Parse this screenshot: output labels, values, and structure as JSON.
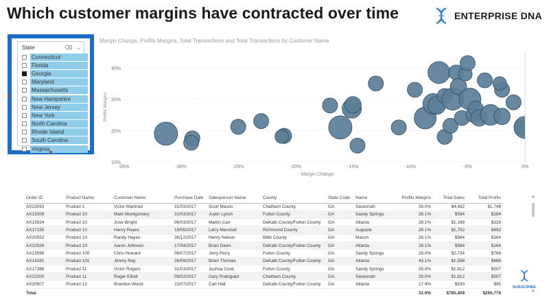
{
  "page": {
    "title": "Which customer margins have contracted over time",
    "brand": "ENTERPRISE DNA",
    "subscribe": "SUBSCRIBE"
  },
  "slicer": {
    "header": "State",
    "items": [
      {
        "label": "Connecticut",
        "checked": false
      },
      {
        "label": "Florida",
        "checked": false
      },
      {
        "label": "Georgia",
        "checked": true
      },
      {
        "label": "Maryland",
        "checked": false
      },
      {
        "label": "Massachusetts",
        "checked": false
      },
      {
        "label": "New Hampshire",
        "checked": false
      },
      {
        "label": "New Jersey",
        "checked": false
      },
      {
        "label": "New York",
        "checked": false
      },
      {
        "label": "North Carolina",
        "checked": false
      },
      {
        "label": "Rhode Island",
        "checked": false
      },
      {
        "label": "South Carolina",
        "checked": false
      },
      {
        "label": "Virginia",
        "checked": false
      }
    ]
  },
  "chart_data": {
    "type": "scatter",
    "title": "Margin Change, Profits Margins, Total Transactions and Total Transactions by Customer Name",
    "xlabel": "Margin Change",
    "ylabel": "Profits Margins",
    "xlim": [
      -0.35,
      0.0
    ],
    "ylim": [
      0.1,
      0.45
    ],
    "xticks": [
      "-35%",
      "-30%",
      "-25%",
      "-20%",
      "-15%",
      "-10%",
      "-5%",
      "0%"
    ],
    "yticks": [
      "10%",
      "20%",
      "30%",
      "40%"
    ],
    "color": "#5b7e99",
    "points": [
      {
        "x": -0.313,
        "y": 0.19,
        "r": 17
      },
      {
        "x": -0.29,
        "y": 0.175,
        "r": 11
      },
      {
        "x": -0.291,
        "y": 0.161,
        "r": 11
      },
      {
        "x": -0.25,
        "y": 0.212,
        "r": 11
      },
      {
        "x": -0.23,
        "y": 0.23,
        "r": 11
      },
      {
        "x": -0.21,
        "y": 0.183,
        "r": 11
      },
      {
        "x": -0.212,
        "y": 0.181,
        "r": 10
      },
      {
        "x": -0.17,
        "y": 0.28,
        "r": 11
      },
      {
        "x": -0.161,
        "y": 0.21,
        "r": 17
      },
      {
        "x": -0.151,
        "y": 0.27,
        "r": 14
      },
      {
        "x": -0.15,
        "y": 0.282,
        "r": 12
      },
      {
        "x": -0.146,
        "y": 0.152,
        "r": 11
      },
      {
        "x": -0.13,
        "y": 0.35,
        "r": 11
      },
      {
        "x": -0.11,
        "y": 0.21,
        "r": 11
      },
      {
        "x": -0.096,
        "y": 0.33,
        "r": 11
      },
      {
        "x": -0.087,
        "y": 0.24,
        "r": 16
      },
      {
        "x": -0.08,
        "y": 0.285,
        "r": 15
      },
      {
        "x": -0.077,
        "y": 0.28,
        "r": 13
      },
      {
        "x": -0.075,
        "y": 0.385,
        "r": 16
      },
      {
        "x": -0.07,
        "y": 0.31,
        "r": 11
      },
      {
        "x": -0.07,
        "y": 0.18,
        "r": 11
      },
      {
        "x": -0.065,
        "y": 0.215,
        "r": 11
      },
      {
        "x": -0.063,
        "y": 0.3,
        "r": 16
      },
      {
        "x": -0.06,
        "y": 0.385,
        "r": 11
      },
      {
        "x": -0.058,
        "y": 0.34,
        "r": 12
      },
      {
        "x": -0.055,
        "y": 0.24,
        "r": 11
      },
      {
        "x": -0.052,
        "y": 0.38,
        "r": 10
      },
      {
        "x": -0.05,
        "y": 0.415,
        "r": 11
      },
      {
        "x": -0.048,
        "y": 0.3,
        "r": 16
      },
      {
        "x": -0.045,
        "y": 0.25,
        "r": 11
      },
      {
        "x": -0.043,
        "y": 0.27,
        "r": 11
      },
      {
        "x": -0.04,
        "y": 0.24,
        "r": 12
      },
      {
        "x": -0.035,
        "y": 0.36,
        "r": 11
      },
      {
        "x": -0.03,
        "y": 0.25,
        "r": 15
      },
      {
        "x": -0.02,
        "y": 0.33,
        "r": 11
      },
      {
        "x": -0.02,
        "y": 0.245,
        "r": 12
      },
      {
        "x": -0.022,
        "y": 0.35,
        "r": 10
      },
      {
        "x": -0.01,
        "y": 0.29,
        "r": 11
      },
      {
        "x": -0.003,
        "y": 0.21,
        "r": 11
      },
      {
        "x": 0.0,
        "y": 0.21,
        "r": 16
      }
    ]
  },
  "table": {
    "columns": [
      "Order ID",
      "Product Name",
      "Customer Name",
      "Purchase Date",
      "Salesperson Name",
      "County",
      "State Code",
      "Name",
      "Profits Margins",
      "Total Sales",
      "Total Profits"
    ],
    "rows": [
      [
        "AX23093",
        "Product 1",
        "Victor Martinez",
        "31/03/2017",
        "Scott Mason",
        "Chatham County",
        "GA",
        "Savannah",
        "39.0%",
        "$4,482",
        "$1,748"
      ],
      [
        "AX13209",
        "Product 10",
        "Mark Montgomery",
        "31/03/2017",
        "Justin Lynch",
        "Fulton County",
        "GA",
        "Sandy Springs",
        "28.1%",
        "$584",
        "$164"
      ],
      [
        "AX15934",
        "Product 10",
        "Jose Wright",
        "06/03/2017",
        "Martin Carr",
        "DeKalb County/Fulton County",
        "GA",
        "Atlanta",
        "28.1%",
        "$1,168",
        "$328"
      ],
      [
        "AX17155",
        "Product 10",
        "Henry Reyes",
        "19/05/2017",
        "Larry Marshall",
        "Richmond County",
        "GA",
        "Augusta",
        "28.1%",
        "$1,752",
        "$492"
      ],
      [
        "AX20552",
        "Product 10",
        "Randy Hayes",
        "28/12/2017",
        "Henry Nelson",
        "Bibb County",
        "GA",
        "Macon",
        "28.1%",
        "$584",
        "$164"
      ],
      [
        "AX22926",
        "Product 10",
        "Aaron Johnson",
        "17/04/2017",
        "Brian Davis",
        "DeKalb County/Fulton County",
        "GA",
        "Atlanta",
        "28.1%",
        "$584",
        "$164"
      ],
      [
        "AX13599",
        "Product 100",
        "Chris Howard",
        "08/07/2017",
        "Jerry Perry",
        "Fulton County",
        "GA",
        "Sandy Springs",
        "28.0%",
        "$2,734",
        "$766"
      ],
      [
        "AX14281",
        "Product 101",
        "Jimmy Ray",
        "26/09/2017",
        "Brian Thomas",
        "DeKalb County/Fulton County",
        "GA",
        "Atlanta",
        "43.1%",
        "$1,598",
        "$688"
      ],
      [
        "AX17386",
        "Product 11",
        "Victor Rogers",
        "31/03/2017",
        "Joshua Cook",
        "Fulton County",
        "GA",
        "Sandy Springs",
        "28.0%",
        "$1,812",
        "$507"
      ],
      [
        "AX22200",
        "Product 11",
        "Roger Elliott",
        "09/02/2017",
        "Gary Rodriguez",
        "Chatham County",
        "GA",
        "Savannah",
        "28.0%",
        "$1,812",
        "$507"
      ],
      [
        "AX20507",
        "Product 12",
        "Brandon Wood",
        "22/07/2017",
        "Carl Hall",
        "DeKalb County/Fulton County",
        "GA",
        "Atlanta",
        "17.9%",
        "$530",
        "$95"
      ]
    ],
    "total": {
      "label": "Total",
      "profits_margins": "31.9%",
      "total_sales": "$785,409",
      "total_profits": "$250,776"
    }
  }
}
